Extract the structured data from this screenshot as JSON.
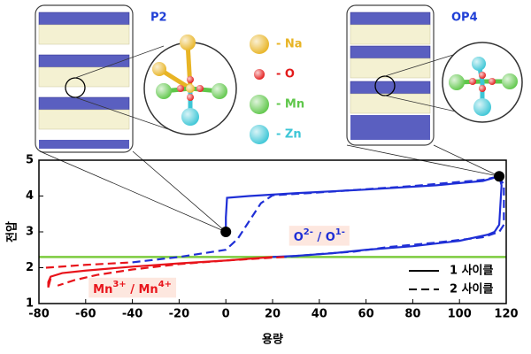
{
  "chart_data": {
    "type": "line",
    "xlabel": "용량",
    "ylabel": "전압",
    "xlim": [
      -80,
      120
    ],
    "xticks": [
      -80,
      -60,
      -40,
      -20,
      0,
      20,
      40,
      60,
      80,
      100,
      120
    ],
    "ylim": [
      1,
      5
    ],
    "yticks": [
      1,
      2,
      3,
      4,
      5
    ],
    "series": [
      {
        "name": "1 사이클",
        "dash": "solid",
        "segments": [
          {
            "color": "#1f2fd6",
            "x": [
              0,
              0,
              0.5,
              10,
              30,
              60,
              90,
              110,
              117,
              118,
              117,
              115,
              112,
              100,
              80,
              60,
              45,
              30,
              20
            ],
            "values": [
              3.0,
              3.4,
              3.95,
              4.0,
              4.08,
              4.18,
              4.3,
              4.42,
              4.55,
              4.3,
              3.2,
              3.0,
              2.92,
              2.75,
              2.6,
              2.5,
              2.4,
              2.33,
              2.3
            ]
          },
          {
            "color": "#e8141b",
            "x": [
              20,
              0,
              -20,
              -40,
              -60,
              -70,
              -75,
              -76,
              -76,
              -75
            ],
            "values": [
              2.3,
              2.2,
              2.12,
              2.03,
              1.92,
              1.85,
              1.75,
              1.6,
              1.45,
              1.7
            ]
          }
        ]
      },
      {
        "name": "2 사이클",
        "dash": "dashed",
        "segments": [
          {
            "color": "#e8141b",
            "x": [
              -77,
              -60,
              -40
            ],
            "values": [
              2.0,
              2.08,
              2.15
            ]
          },
          {
            "color": "#1f2fd6",
            "x": [
              -40,
              -20,
              0,
              5,
              10,
              15,
              20,
              40,
              80,
              110,
              117
            ],
            "values": [
              2.15,
              2.3,
              2.5,
              2.8,
              3.3,
              3.8,
              4.02,
              4.1,
              4.28,
              4.45,
              4.55
            ]
          },
          {
            "color": "#1f2fd6",
            "x": [
              117,
              119,
              119,
              117,
              110,
              90,
              70,
              55,
              40,
              25
            ],
            "values": [
              4.55,
              4.3,
              3.2,
              3.0,
              2.85,
              2.7,
              2.58,
              2.45,
              2.38,
              2.3
            ]
          },
          {
            "color": "#e8141b",
            "x": [
              25,
              0,
              -20,
              -40,
              -55,
              -65,
              -72
            ],
            "values": [
              2.3,
              2.2,
              2.1,
              1.95,
              1.8,
              1.65,
              1.5
            ]
          }
        ]
      }
    ],
    "reference_line": {
      "y": 2.3,
      "color": "#7ccb3e"
    },
    "points": {
      "x": [
        0,
        117
      ],
      "values": [
        3.0,
        4.55
      ],
      "color": "#000000"
    },
    "annotations": [
      {
        "x": 40,
        "y": 2.85,
        "color": "#1f2fd6",
        "parts": [
          {
            "text": "O"
          },
          {
            "text": "2-",
            "sup": true
          },
          {
            "text": " / O"
          },
          {
            "text": "1-",
            "sup": true
          }
        ]
      },
      {
        "x": -40,
        "y": 1.4,
        "color": "#e8141b",
        "parts": [
          {
            "text": "Mn"
          },
          {
            "text": "3+",
            "sup": true
          },
          {
            "text": " / Mn"
          },
          {
            "text": "4+",
            "sup": true
          }
        ]
      }
    ],
    "legend_position": "lower right"
  },
  "illustration": {
    "left_label": "P2",
    "right_label": "OP4",
    "atoms": [
      {
        "label": "- Na",
        "color": "#e8b424"
      },
      {
        "label": "- O",
        "color": "#e31a1a"
      },
      {
        "label": "- Mn",
        "color": "#5fc74a"
      },
      {
        "label": "- Zn",
        "color": "#3cc6d6"
      }
    ]
  }
}
